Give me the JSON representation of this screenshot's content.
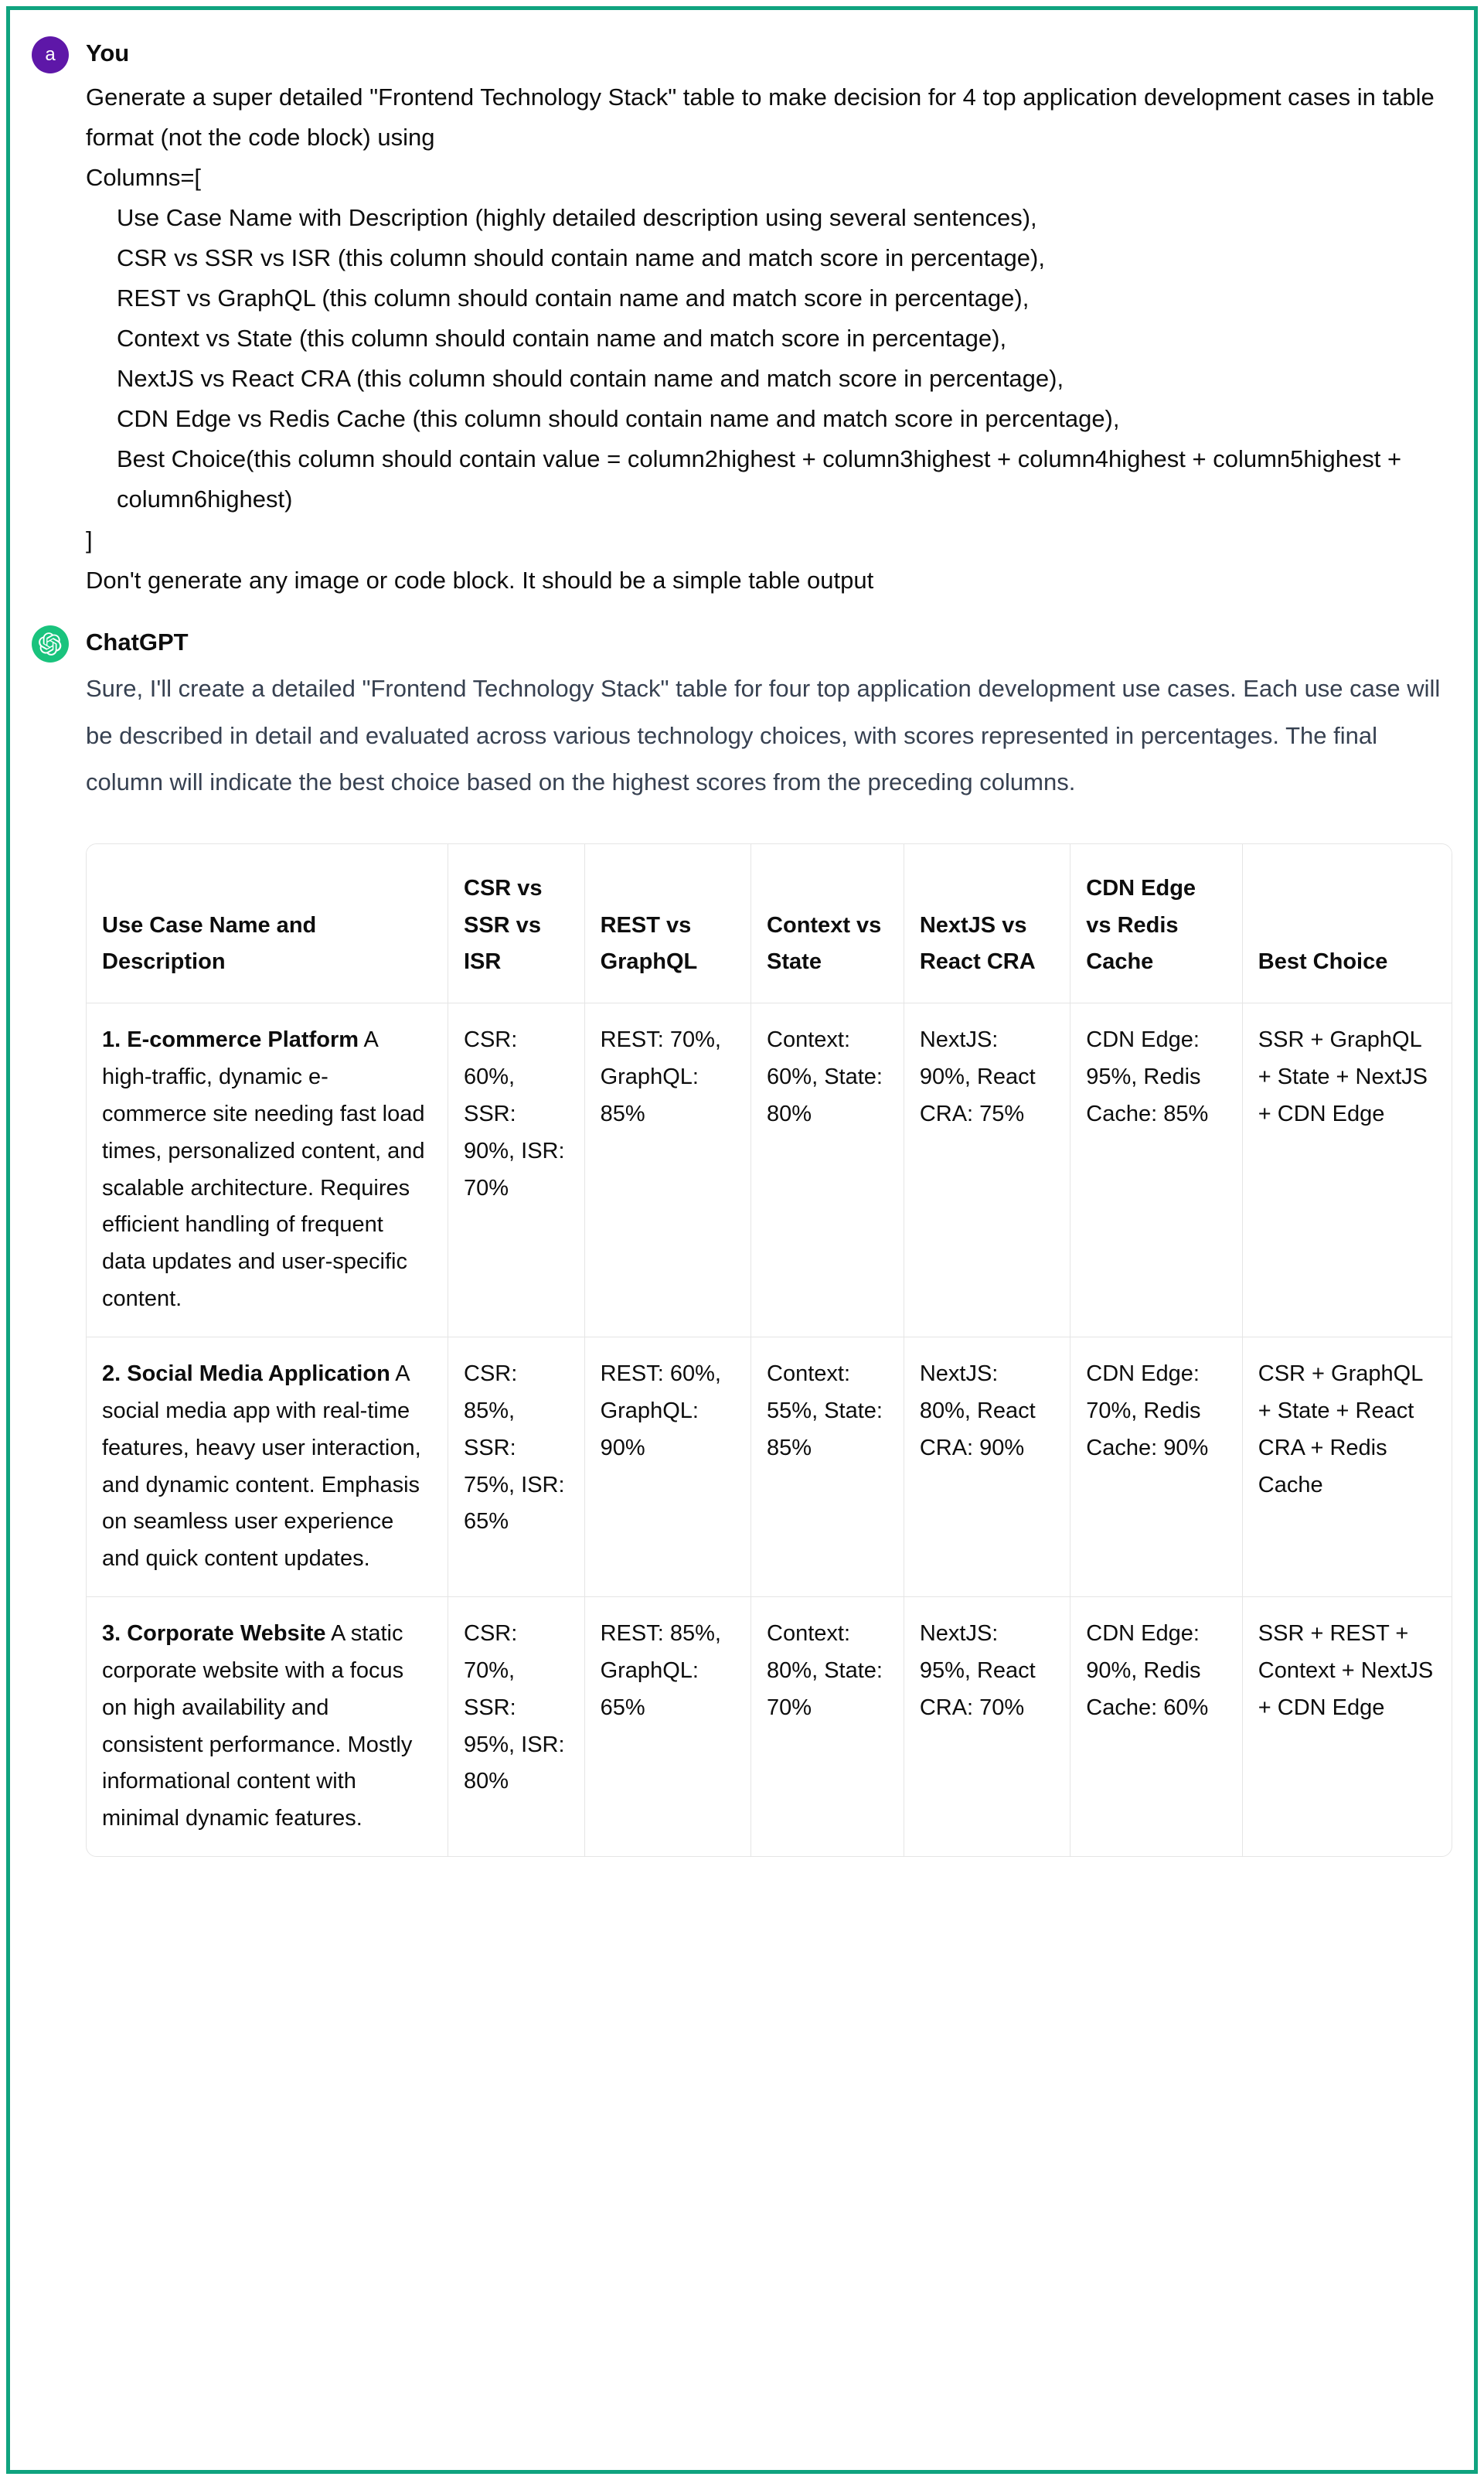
{
  "user": {
    "avatar_letter": "a",
    "sender_label": "You",
    "lines": [
      "Generate a super detailed \"Frontend Technology Stack\" table to make decision for 4 top application development cases in table format (not the code block) using",
      "Columns=[",
      "Use Case Name with Description (highly detailed description using several sentences),",
      "CSR vs SSR vs ISR (this column should contain name and match score in percentage),",
      "REST vs GraphQL (this column should contain name and match score in percentage),",
      "Context vs State (this column should contain name and match score in percentage),",
      "NextJS vs React CRA (this column should contain name and match score in percentage),",
      "CDN Edge vs Redis Cache (this column should contain name and match score in percentage),",
      "Best Choice(this column should contain value = column2highest + column3highest + column4highest + column5highest + column6highest)",
      "]",
      "Don't generate any image or code block. It should be a simple table output"
    ],
    "indents": [
      false,
      false,
      true,
      true,
      true,
      true,
      true,
      true,
      true,
      false,
      false
    ]
  },
  "assistant": {
    "sender_label": "ChatGPT",
    "intro": "Sure, I'll create a detailed \"Frontend Technology Stack\" table for four top application development use cases. Each use case will be described in detail and evaluated across various technology choices, with scores represented in percentages. The final column will indicate the best choice based on the highest scores from the preceding columns."
  },
  "table": {
    "headers": {
      "usecase": "Use Case Name and Description",
      "csr": "CSR vs SSR vs ISR",
      "rest": "REST vs GraphQL",
      "context": "Context vs State",
      "nextjs": "NextJS vs React CRA",
      "cdn": "CDN Edge vs Redis Cache",
      "best": "Best Choice"
    },
    "rows": [
      {
        "title": "1. E-commerce Platform",
        "desc": " A high-traffic, dynamic e-commerce site needing fast load times, personalized content, and scalable architecture. Requires efficient handling of frequent data updates and user-specific content.",
        "csr": "CSR: 60%, SSR: 90%, ISR: 70%",
        "rest": "REST: 70%, GraphQL: 85%",
        "context": "Context: 60%, State: 80%",
        "nextjs": "NextJS: 90%, React CRA: 75%",
        "cdn": "CDN Edge: 95%, Redis Cache: 85%",
        "best": "SSR + GraphQL + State + NextJS + CDN Edge"
      },
      {
        "title": "2. Social Media Application",
        "desc": " A social media app with real-time features, heavy user interaction, and dynamic content. Emphasis on seamless user experience and quick content updates.",
        "csr": "CSR: 85%, SSR: 75%, ISR: 65%",
        "rest": "REST: 60%, GraphQL: 90%",
        "context": "Context: 55%, State: 85%",
        "nextjs": "NextJS: 80%, React CRA: 90%",
        "cdn": "CDN Edge: 70%, Redis Cache: 90%",
        "best": "CSR + GraphQL + State + React CRA + Redis Cache"
      },
      {
        "title": "3. Corporate Website",
        "desc": " A static corporate website with a focus on high availability and consistent performance. Mostly informational content with minimal dynamic features.",
        "csr": "CSR: 70%, SSR: 95%, ISR: 80%",
        "rest": "REST: 85%, GraphQL: 65%",
        "context": "Context: 80%, State: 70%",
        "nextjs": "NextJS: 95%, React CRA: 70%",
        "cdn": "CDN Edge: 90%, Redis Cache: 60%",
        "best": "SSR + REST + Context + NextJS + CDN Edge"
      }
    ]
  },
  "style": {
    "border_color": "#10a37f",
    "user_avatar_bg": "#5e17a8",
    "assistant_avatar_bg": "#19c37d",
    "text_color": "#0d0d0d",
    "assistant_text_color": "#374151",
    "table_border_color": "#e5e5e5",
    "font_size_body": 31,
    "font_size_table": 29
  }
}
